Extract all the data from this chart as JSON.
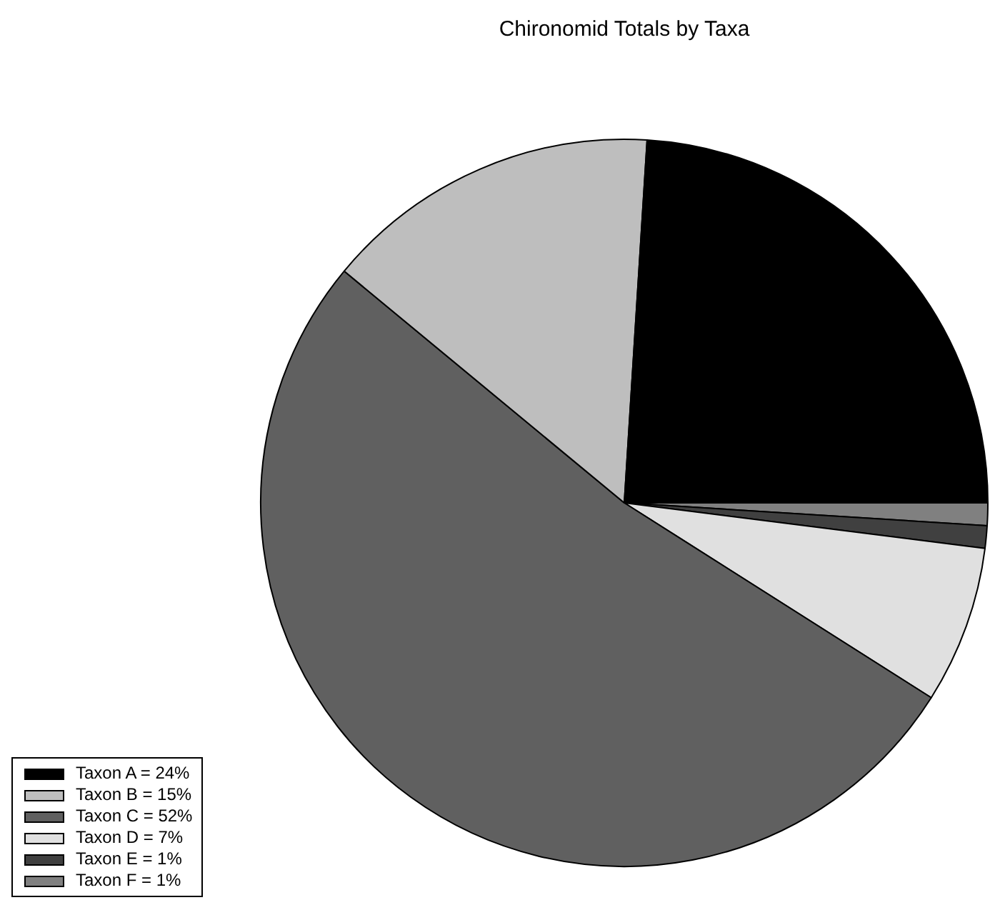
{
  "chart_data": {
    "type": "pie",
    "title": "Chironomid Totals by Taxa",
    "categories": [
      "Taxon A = 24%",
      "Taxon B = 15%",
      "Taxon C = 52%",
      "Taxon D = 7%",
      "Taxon E = 1%",
      "Taxon F = 1%"
    ],
    "values": [
      24,
      15,
      52,
      7,
      1,
      1
    ],
    "colors": [
      "#000000",
      "#bebebe",
      "#606060",
      "#e0e0e0",
      "#404040",
      "#808080"
    ],
    "legend": "bottom left"
  }
}
